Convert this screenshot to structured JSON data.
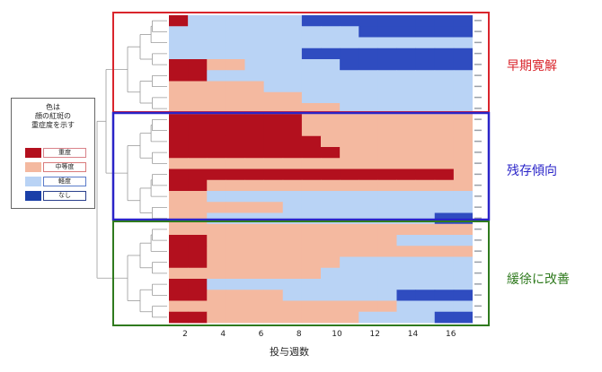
{
  "legend": {
    "title": "色は\n顔の紅斑の\n重症度を示す",
    "items": [
      {
        "label": "重度",
        "color": "#b3101e",
        "border": "#d9828a"
      },
      {
        "label": "中等度",
        "color": "#f4b9a0",
        "border": "#d97a7a"
      },
      {
        "label": "軽度",
        "color": "#b9d3f5",
        "border": "#5a7bc9"
      },
      {
        "label": "なし",
        "color": "#1a3fa8",
        "border": "#2a3f8c"
      }
    ]
  },
  "groups": [
    {
      "label": "早期寛解",
      "color": "#d9252c"
    },
    {
      "label": "残存傾向",
      "color": "#2a24c8"
    },
    {
      "label": "緩徐に改善",
      "color": "#2f7a1e"
    }
  ],
  "chart_data": {
    "type": "heatmap",
    "xlabel": "投与週数",
    "x_ticks": [
      2,
      4,
      6,
      8,
      10,
      12,
      14,
      16
    ],
    "severity_levels": [
      "なし",
      "軽度",
      "中等度",
      "重度"
    ],
    "cell_colors": [
      "#2f4cc0",
      "#b9d3f5",
      "#f4b9a0",
      "#b3101e"
    ],
    "rows": [
      [
        3,
        1,
        1,
        1,
        1,
        1,
        1,
        0,
        0,
        0,
        0,
        0,
        0,
        0,
        0,
        0
      ],
      [
        1,
        1,
        1,
        1,
        1,
        1,
        1,
        1,
        1,
        1,
        0,
        0,
        0,
        0,
        0,
        0
      ],
      [
        1,
        1,
        1,
        1,
        1,
        1,
        1,
        1,
        1,
        1,
        1,
        1,
        1,
        1,
        1,
        1
      ],
      [
        1,
        1,
        1,
        1,
        1,
        1,
        1,
        0,
        0,
        0,
        0,
        0,
        0,
        0,
        0,
        0
      ],
      [
        3,
        3,
        2,
        2,
        1,
        1,
        1,
        1,
        1,
        0,
        0,
        0,
        0,
        0,
        0,
        0
      ],
      [
        3,
        3,
        1,
        1,
        1,
        1,
        1,
        1,
        1,
        1,
        1,
        1,
        1,
        1,
        1,
        1
      ],
      [
        2,
        2,
        2,
        2,
        2,
        1,
        1,
        1,
        1,
        1,
        1,
        1,
        1,
        1,
        1,
        1
      ],
      [
        2,
        2,
        2,
        2,
        2,
        2,
        2,
        1,
        1,
        1,
        1,
        1,
        1,
        1,
        1,
        1
      ],
      [
        2,
        2,
        2,
        2,
        2,
        2,
        2,
        2,
        2,
        1,
        1,
        1,
        1,
        1,
        1,
        1
      ],
      [
        3,
        3,
        3,
        3,
        3,
        3,
        3,
        2,
        2,
        2,
        2,
        2,
        2,
        2,
        2,
        2
      ],
      [
        3,
        3,
        3,
        3,
        3,
        3,
        3,
        2,
        2,
        2,
        2,
        2,
        2,
        2,
        2,
        2
      ],
      [
        3,
        3,
        3,
        3,
        3,
        3,
        3,
        3,
        2,
        2,
        2,
        2,
        2,
        2,
        2,
        2
      ],
      [
        3,
        3,
        3,
        3,
        3,
        3,
        3,
        3,
        3,
        2,
        2,
        2,
        2,
        2,
        2,
        2
      ],
      [
        2,
        2,
        2,
        2,
        2,
        2,
        2,
        2,
        2,
        2,
        2,
        2,
        2,
        2,
        2,
        2
      ],
      [
        3,
        3,
        3,
        3,
        3,
        3,
        3,
        3,
        3,
        3,
        3,
        3,
        3,
        3,
        3,
        2
      ],
      [
        3,
        3,
        2,
        2,
        2,
        2,
        2,
        2,
        2,
        2,
        2,
        2,
        2,
        2,
        2,
        2
      ],
      [
        2,
        2,
        1,
        1,
        1,
        1,
        1,
        1,
        1,
        1,
        1,
        1,
        1,
        1,
        1,
        1
      ],
      [
        2,
        2,
        2,
        2,
        2,
        2,
        1,
        1,
        1,
        1,
        1,
        1,
        1,
        1,
        1,
        1
      ],
      [
        2,
        2,
        1,
        1,
        1,
        1,
        1,
        1,
        1,
        1,
        1,
        1,
        1,
        1,
        0,
        0
      ],
      [
        2,
        2,
        2,
        2,
        2,
        2,
        2,
        2,
        2,
        2,
        2,
        2,
        2,
        2,
        2,
        2
      ],
      [
        3,
        3,
        2,
        2,
        2,
        2,
        2,
        2,
        2,
        2,
        2,
        2,
        1,
        1,
        1,
        1
      ],
      [
        3,
        3,
        2,
        2,
        2,
        2,
        2,
        2,
        2,
        2,
        2,
        2,
        2,
        2,
        2,
        2
      ],
      [
        3,
        3,
        2,
        2,
        2,
        2,
        2,
        2,
        2,
        1,
        1,
        1,
        1,
        1,
        1,
        1
      ],
      [
        2,
        2,
        2,
        2,
        2,
        2,
        2,
        2,
        1,
        1,
        1,
        1,
        1,
        1,
        1,
        1
      ],
      [
        3,
        3,
        1,
        1,
        1,
        1,
        1,
        1,
        1,
        1,
        1,
        1,
        1,
        1,
        1,
        1
      ],
      [
        3,
        3,
        2,
        2,
        2,
        2,
        1,
        1,
        1,
        1,
        1,
        1,
        0,
        0,
        0,
        0
      ],
      [
        2,
        2,
        2,
        2,
        2,
        2,
        2,
        2,
        2,
        2,
        2,
        2,
        1,
        1,
        1,
        1
      ],
      [
        3,
        3,
        2,
        2,
        2,
        2,
        2,
        2,
        2,
        2,
        1,
        1,
        1,
        1,
        0,
        0
      ]
    ]
  }
}
